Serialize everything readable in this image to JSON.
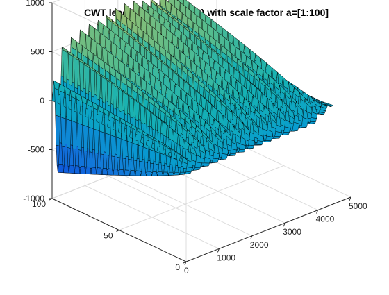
{
  "chart_data": {
    "type": "surface",
    "title": "CWT lead V4 (QRS detect) with scale factor a=[1:100]",
    "xlabel": "",
    "ylabel": "",
    "zlabel": "",
    "xlim": [
      0,
      5000
    ],
    "ylim": [
      0,
      100
    ],
    "zlim": [
      -1000,
      1000
    ],
    "x_ticks": [
      0,
      1000,
      2000,
      3000,
      4000,
      5000
    ],
    "x_tick_labels": [
      "0",
      "1000",
      "2000",
      "3000",
      "4000",
      "5000"
    ],
    "y_ticks": [
      0,
      50,
      100
    ],
    "y_tick_labels": [
      "0",
      "50",
      "100"
    ],
    "z_ticks": [
      -1000,
      -500,
      0,
      500,
      1000
    ],
    "z_tick_labels": [
      "-1000",
      "-500",
      "0",
      "500",
      "1000"
    ],
    "grid": true,
    "colormap": "parula",
    "edge_color": "#000000",
    "surface_model": {
      "signal_length": 4500,
      "scales": 100,
      "beat_period_samples": 270,
      "beat_count": 16,
      "peak_amplitude_large_scale": 950,
      "trough_amplitude_large_scale": -850,
      "edge_amplitude_small_scale": 200,
      "end_rolloff_start": 3900
    }
  }
}
